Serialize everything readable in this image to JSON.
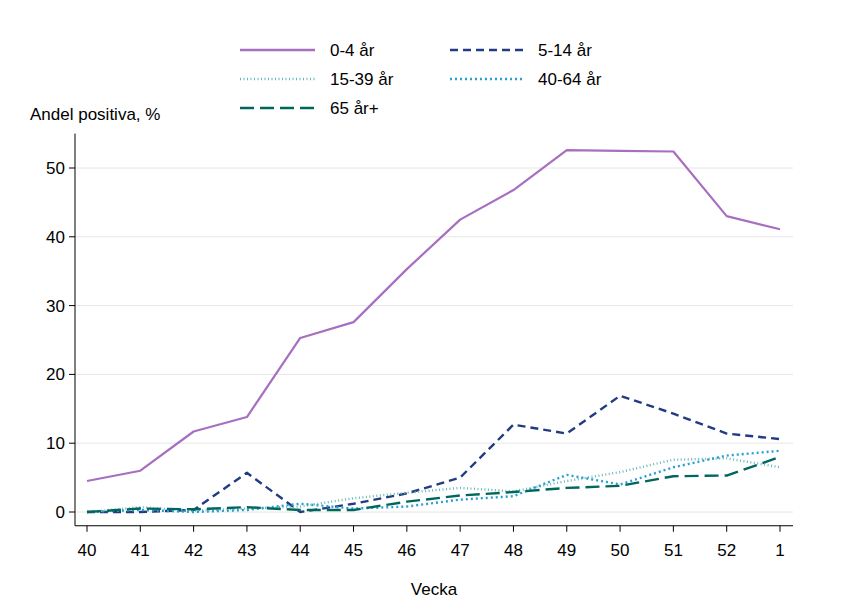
{
  "chart_data": {
    "type": "line",
    "y_label": "Andel positiva, %",
    "x_label": "Vecka",
    "categories": [
      "40",
      "41",
      "42",
      "43",
      "44",
      "45",
      "46",
      "47",
      "48",
      "49",
      "50",
      "51",
      "52",
      "1"
    ],
    "series": [
      {
        "name": "0-4 år",
        "color": "#a76fc0",
        "line_style": "solid",
        "values": [
          4.5,
          6,
          11.7,
          13.8,
          25.3,
          27.6,
          35.3,
          42.5,
          46.8,
          52.6,
          52.5,
          52.4,
          43,
          41.1
        ]
      },
      {
        "name": "5-14 år",
        "color": "#213c82",
        "line_style": "dashed",
        "values": [
          0,
          0,
          0.3,
          5.7,
          0,
          1.2,
          2.7,
          5,
          12.7,
          11.4,
          16.9,
          14.3,
          11.4,
          10.6
        ]
      },
      {
        "name": "15-39 år",
        "color": "#63b8b5",
        "line_style": "dotted",
        "values": [
          0,
          0.7,
          0.2,
          0.5,
          0.8,
          2,
          2.8,
          3.5,
          3,
          4.5,
          5.8,
          7.6,
          7.8,
          6.5
        ]
      },
      {
        "name": "40-64 år",
        "color": "#2a9fd3",
        "line_style": "dotted",
        "values": [
          0,
          0.3,
          0,
          0.3,
          1.2,
          0.5,
          0.8,
          1.8,
          2.3,
          5.4,
          4,
          6.5,
          8.2,
          8.9
        ]
      },
      {
        "name": "65 år+",
        "color": "#00675c",
        "line_style": "longdash",
        "values": [
          0,
          0.5,
          0.4,
          0.7,
          0.3,
          0.3,
          1.5,
          2.4,
          2.9,
          3.5,
          3.8,
          5.2,
          5.3,
          8
        ]
      }
    ],
    "ylim": [
      -2,
      55
    ],
    "yticks": [
      0,
      10,
      20,
      30,
      40,
      50
    ],
    "grid": true,
    "legend": "top"
  }
}
